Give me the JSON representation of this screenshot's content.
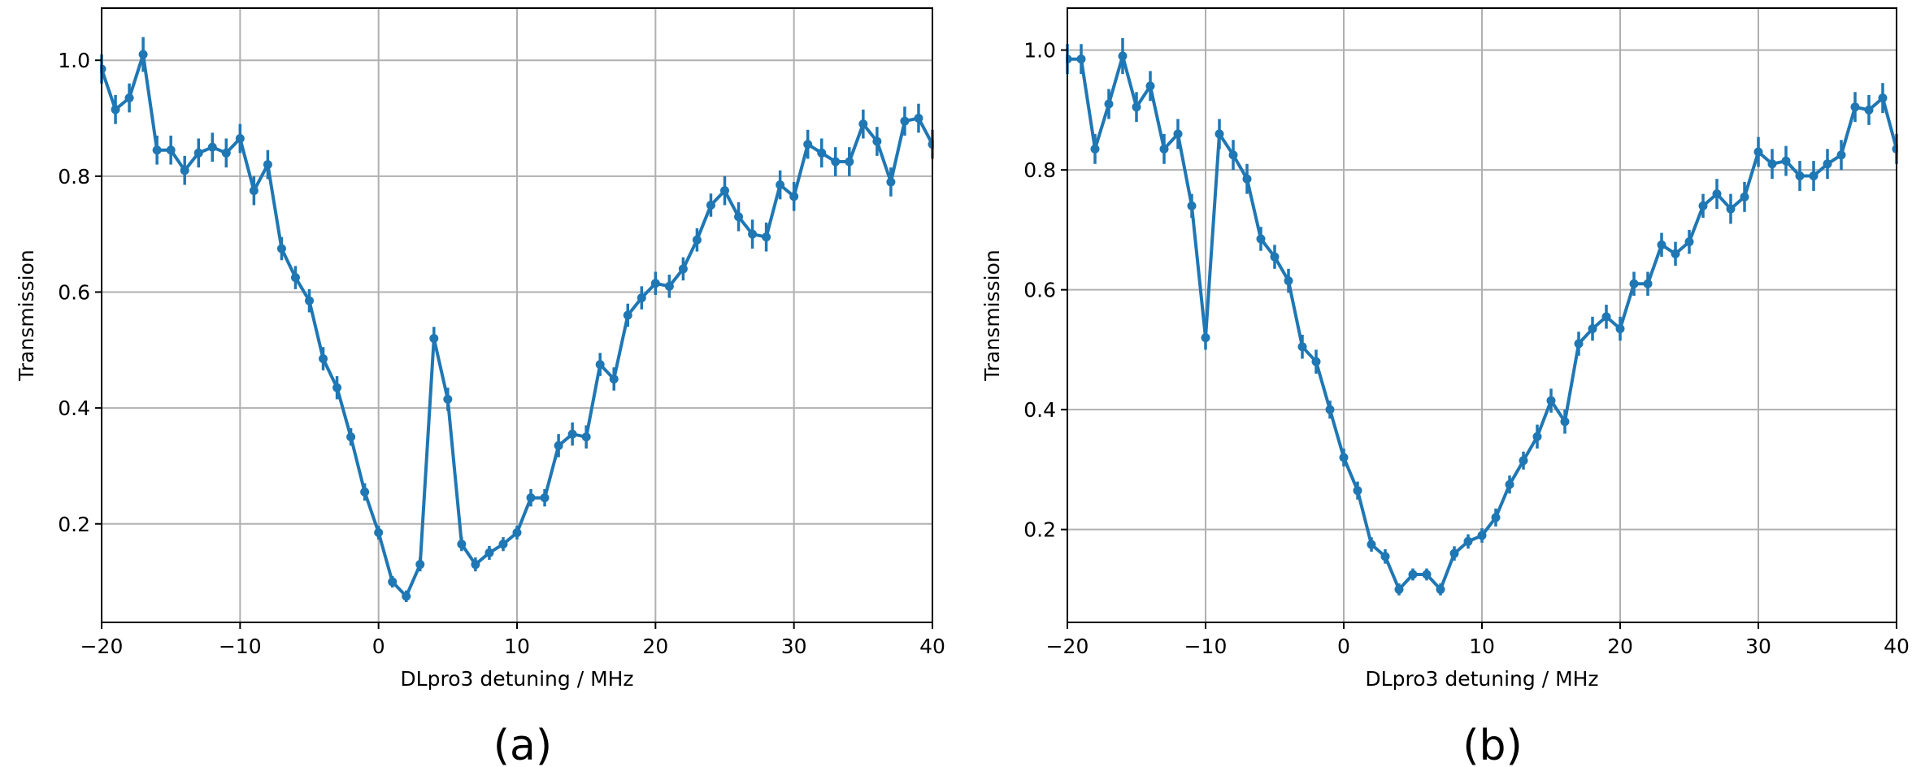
{
  "chart_data": [
    {
      "type": "line",
      "panel_label": "(a)",
      "xlabel": "DLpro3 detuning / MHz",
      "ylabel": "Transmission",
      "xlim": [
        -20,
        40
      ],
      "ylim": [
        0.03,
        1.09
      ],
      "xticks": [
        -20,
        -10,
        0,
        10,
        20,
        30,
        40
      ],
      "xtick_labels": [
        "−20",
        "−10",
        "0",
        "10",
        "20",
        "30",
        "40"
      ],
      "yticks": [
        0.2,
        0.4,
        0.6,
        0.8,
        1.0
      ],
      "ytick_labels": [
        "0.2",
        "0.4",
        "0.6",
        "0.8",
        "1.0"
      ],
      "grid": true,
      "color": "#1f77b4",
      "series": [
        {
          "x": [
            -20,
            -19,
            -18,
            -17,
            -16,
            -15,
            -14,
            -13,
            -12,
            -11,
            -10,
            -9,
            -8,
            -7,
            -6,
            -5,
            -4,
            -3,
            -2,
            -1,
            0,
            1,
            2,
            3,
            4,
            5,
            6,
            7,
            8,
            9,
            10,
            11,
            12,
            13,
            14,
            15,
            16,
            17,
            18,
            19,
            20,
            21,
            22,
            23,
            24,
            25,
            26,
            27,
            28,
            29,
            30,
            31,
            32,
            33,
            34,
            35,
            36,
            37,
            38,
            39,
            40
          ],
          "y": [
            0.985,
            0.915,
            0.935,
            1.01,
            0.845,
            0.845,
            0.81,
            0.84,
            0.85,
            0.84,
            0.865,
            0.775,
            0.82,
            0.675,
            0.625,
            0.585,
            0.485,
            0.435,
            0.35,
            0.255,
            0.185,
            0.1,
            0.075,
            0.13,
            0.52,
            0.415,
            0.165,
            0.13,
            0.15,
            0.165,
            0.185,
            0.245,
            0.245,
            0.335,
            0.355,
            0.35,
            0.475,
            0.45,
            0.56,
            0.59,
            0.615,
            0.61,
            0.64,
            0.69,
            0.75,
            0.775,
            0.73,
            0.7,
            0.695,
            0.785,
            0.765,
            0.855,
            0.84,
            0.825,
            0.825,
            0.89,
            0.86,
            0.79,
            0.895,
            0.9,
            0.855
          ],
          "yerr": [
            0.025,
            0.025,
            0.025,
            0.03,
            0.025,
            0.025,
            0.025,
            0.025,
            0.025,
            0.025,
            0.025,
            0.025,
            0.025,
            0.02,
            0.02,
            0.02,
            0.02,
            0.02,
            0.015,
            0.015,
            0.012,
            0.01,
            0.01,
            0.012,
            0.02,
            0.02,
            0.012,
            0.012,
            0.012,
            0.012,
            0.012,
            0.015,
            0.015,
            0.02,
            0.02,
            0.02,
            0.02,
            0.02,
            0.02,
            0.02,
            0.02,
            0.02,
            0.02,
            0.02,
            0.02,
            0.025,
            0.025,
            0.025,
            0.025,
            0.025,
            0.025,
            0.025,
            0.025,
            0.025,
            0.025,
            0.025,
            0.025,
            0.025,
            0.025,
            0.025,
            0.025
          ]
        }
      ]
    },
    {
      "type": "line",
      "panel_label": "(b)",
      "xlabel": "DLpro3 detuning / MHz",
      "ylabel": "Transmission",
      "xlim": [
        -20,
        40
      ],
      "ylim": [
        0.045,
        1.07
      ],
      "xticks": [
        -20,
        -10,
        0,
        10,
        20,
        30,
        40
      ],
      "xtick_labels": [
        "−20",
        "−10",
        "0",
        "10",
        "20",
        "30",
        "40"
      ],
      "yticks": [
        0.2,
        0.4,
        0.6,
        0.8,
        1.0
      ],
      "ytick_labels": [
        "0.2",
        "0.4",
        "0.6",
        "0.8",
        "1.0"
      ],
      "grid": true,
      "color": "#1f77b4",
      "series": [
        {
          "x": [
            -20,
            -19,
            -18,
            -17,
            -16,
            -15,
            -14,
            -13,
            -12,
            -11,
            -10,
            -9,
            -8,
            -7,
            -6,
            -5,
            -4,
            -3,
            -2,
            -1,
            0,
            1,
            2,
            3,
            4,
            5,
            6,
            7,
            8,
            9,
            10,
            11,
            12,
            13,
            14,
            15,
            16,
            17,
            18,
            19,
            20,
            21,
            22,
            23,
            24,
            25,
            26,
            27,
            28,
            29,
            30,
            31,
            32,
            33,
            34,
            35,
            36,
            37,
            38,
            39,
            40
          ],
          "y": [
            0.985,
            0.985,
            0.835,
            0.91,
            0.99,
            0.905,
            0.94,
            0.835,
            0.86,
            0.74,
            0.52,
            0.86,
            0.825,
            0.785,
            0.685,
            0.655,
            0.615,
            0.505,
            0.48,
            0.4,
            0.32,
            0.265,
            0.175,
            0.155,
            0.1,
            0.125,
            0.125,
            0.1,
            0.16,
            0.18,
            0.19,
            0.22,
            0.275,
            0.315,
            0.355,
            0.415,
            0.38,
            0.51,
            0.535,
            0.555,
            0.535,
            0.61,
            0.61,
            0.675,
            0.66,
            0.68,
            0.74,
            0.76,
            0.735,
            0.755,
            0.83,
            0.81,
            0.815,
            0.79,
            0.79,
            0.81,
            0.825,
            0.905,
            0.9,
            0.92,
            0.835
          ],
          "yerr": [
            0.025,
            0.025,
            0.025,
            0.025,
            0.03,
            0.025,
            0.025,
            0.025,
            0.025,
            0.02,
            0.02,
            0.025,
            0.025,
            0.025,
            0.02,
            0.02,
            0.02,
            0.02,
            0.02,
            0.015,
            0.015,
            0.015,
            0.012,
            0.012,
            0.01,
            0.01,
            0.01,
            0.01,
            0.012,
            0.012,
            0.012,
            0.015,
            0.015,
            0.015,
            0.02,
            0.02,
            0.02,
            0.02,
            0.02,
            0.02,
            0.02,
            0.02,
            0.02,
            0.02,
            0.02,
            0.02,
            0.02,
            0.025,
            0.025,
            0.025,
            0.025,
            0.025,
            0.025,
            0.025,
            0.025,
            0.025,
            0.025,
            0.025,
            0.025,
            0.025,
            0.025
          ]
        }
      ]
    }
  ]
}
